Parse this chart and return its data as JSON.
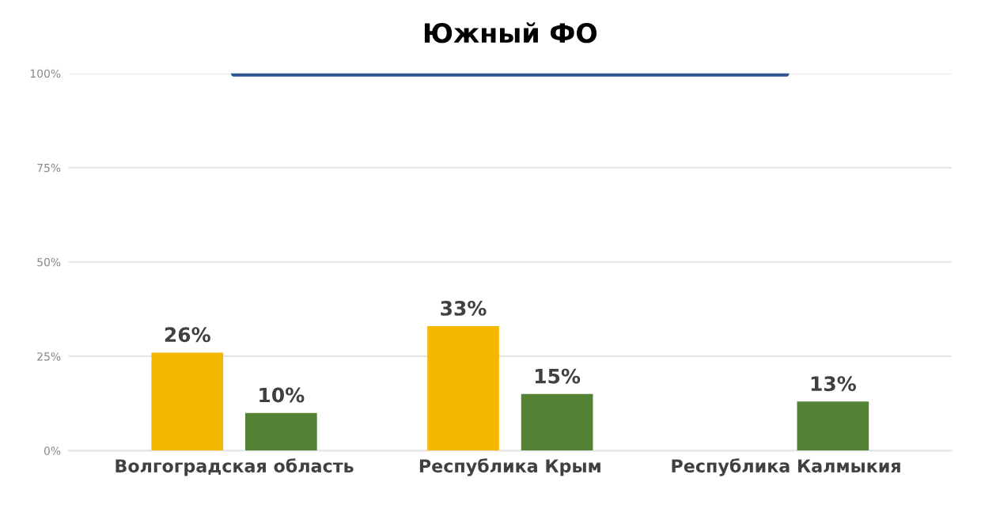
{
  "chart_data": {
    "type": "bar",
    "title": "Южный ФО",
    "categories": [
      "Волгоградская область",
      "Республика Крым",
      "Республика Калмыкия"
    ],
    "series": [
      {
        "color": "#f5b800",
        "values": [
          26,
          33,
          null
        ],
        "value_labels": [
          "26%",
          "33%",
          null
        ]
      },
      {
        "color": "#548235",
        "values": [
          10,
          15,
          13
        ],
        "value_labels": [
          "10%",
          "15%",
          "13%"
        ]
      },
      {
        "type": "line",
        "color": "#2f5597",
        "values": [
          100,
          100,
          100
        ]
      }
    ],
    "ylim": [
      0,
      100
    ],
    "yticks": [
      {
        "value": 0,
        "label": "0%"
      },
      {
        "value": 25,
        "label": "25%"
      },
      {
        "value": 50,
        "label": "50%"
      },
      {
        "value": 75,
        "label": "75%"
      },
      {
        "value": 100,
        "label": "100%"
      }
    ],
    "grid": "y",
    "legend": false
  }
}
